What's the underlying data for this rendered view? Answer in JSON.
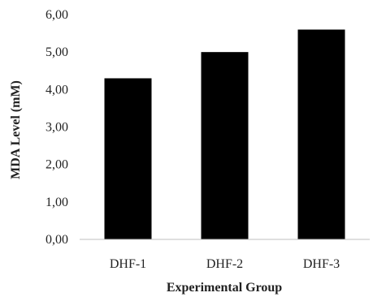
{
  "chart_data": {
    "type": "bar",
    "categories": [
      "DHF-1",
      "DHF-2",
      "DHF-3"
    ],
    "values": [
      4.3,
      5.0,
      5.6
    ],
    "xlabel": "Experimental Group",
    "ylabel": "MDA Level (mM)",
    "ylim": [
      0,
      6
    ],
    "yticks": [
      "0,00",
      "1,00",
      "2,00",
      "3,00",
      "4,00",
      "5,00",
      "6,00"
    ],
    "grid": false,
    "legend": "none",
    "bar_color": "#000000"
  }
}
